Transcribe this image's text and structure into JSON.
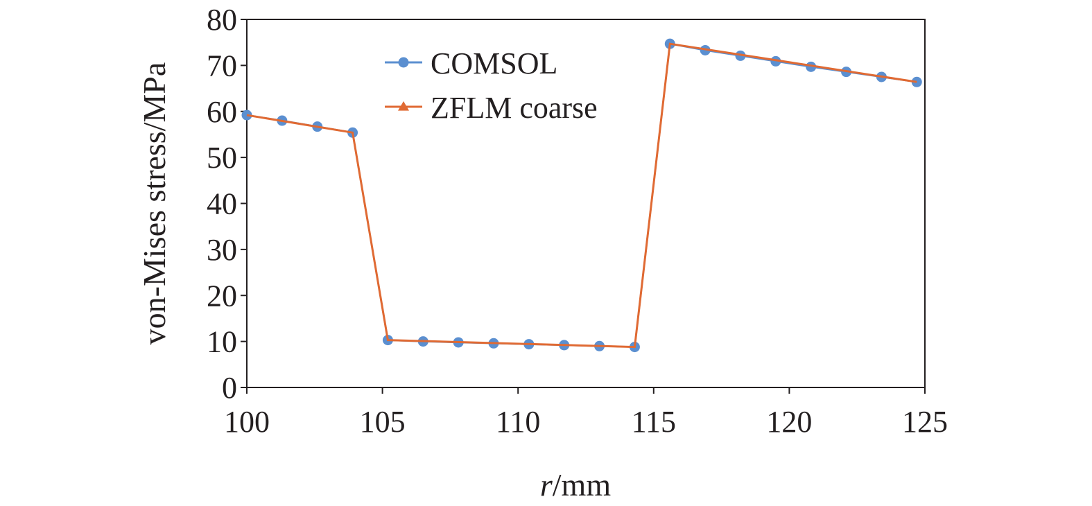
{
  "chart_data": {
    "type": "line",
    "xlabel_italic": "r",
    "xlabel_rest": "/mm",
    "ylabel": "von-Mises stress/MPa",
    "xlim": [
      100,
      125
    ],
    "ylim": [
      0,
      80
    ],
    "x_ticks": [
      "100",
      "105",
      "110",
      "115",
      "120",
      "125"
    ],
    "y_ticks": [
      "0",
      "10",
      "20",
      "30",
      "40",
      "50",
      "60",
      "70",
      "80"
    ],
    "legend_position": "top-left-center",
    "series": [
      {
        "name": "COMSOL",
        "marker": "circle",
        "color": "#5b8fd0",
        "x": [
          100,
          101.3,
          102.6,
          103.9,
          105.2,
          106.5,
          107.8,
          109.1,
          110.4,
          111.7,
          113.0,
          114.3,
          115.6,
          116.9,
          118.2,
          119.5,
          120.8,
          122.1,
          123.4,
          124.7
        ],
        "y": [
          59.2,
          58.0,
          56.7,
          55.4,
          10.3,
          10.0,
          9.8,
          9.6,
          9.4,
          9.2,
          9.0,
          8.8,
          74.7,
          73.3,
          72.1,
          70.9,
          69.7,
          68.6,
          67.5,
          66.4
        ]
      },
      {
        "name": "ZFLM coarse",
        "marker": "triangle",
        "color": "#e06a33",
        "x": [
          100,
          103.9,
          105.2,
          114.3,
          115.6,
          124.7
        ],
        "y": [
          59.2,
          55.4,
          10.3,
          8.8,
          74.7,
          66.4
        ]
      }
    ]
  }
}
